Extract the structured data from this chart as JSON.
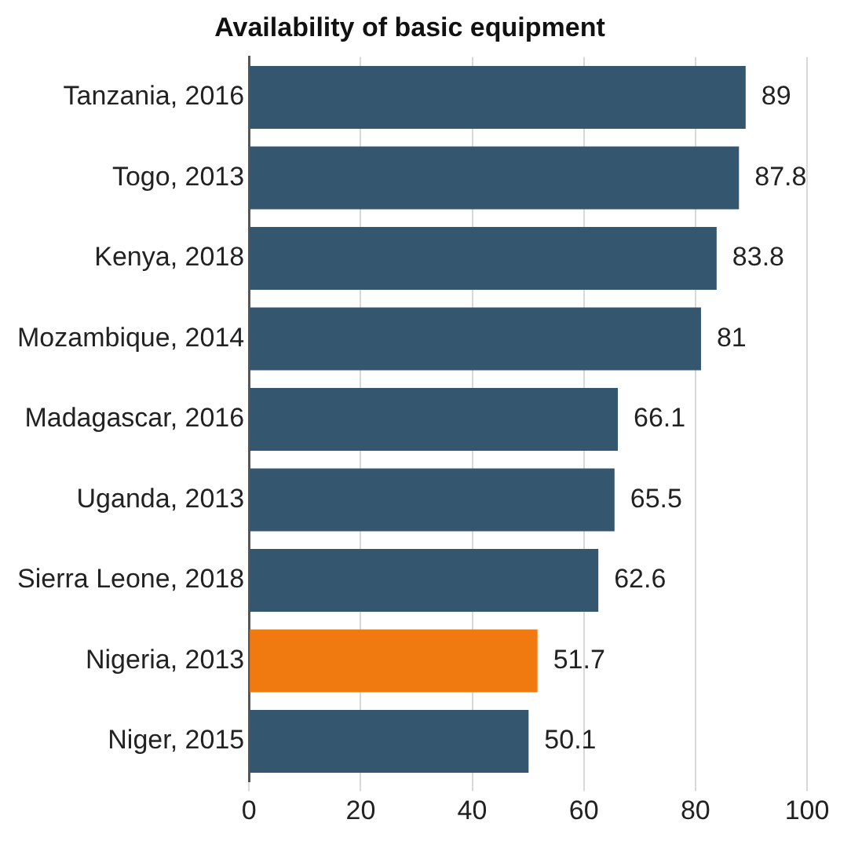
{
  "chart_data": {
    "type": "bar",
    "orientation": "horizontal",
    "title": "Availability of basic equipment",
    "categories": [
      "Tanzania, 2016",
      "Togo, 2013",
      "Kenya, 2018",
      "Mozambique, 2014",
      "Madagascar, 2016",
      "Uganda, 2013",
      "Sierra Leone, 2018",
      "Nigeria, 2013",
      "Niger, 2015"
    ],
    "values": [
      89,
      87.8,
      83.8,
      81,
      66.1,
      65.5,
      62.6,
      51.7,
      50.1
    ],
    "colors": [
      "#34566f",
      "#34566f",
      "#34566f",
      "#34566f",
      "#34566f",
      "#34566f",
      "#34566f",
      "#f07a10",
      "#34566f"
    ],
    "xlim": [
      0,
      100
    ],
    "xticks": [
      0,
      20,
      40,
      60,
      80,
      100
    ],
    "grid": "x",
    "data_labels": true,
    "legend": false
  }
}
